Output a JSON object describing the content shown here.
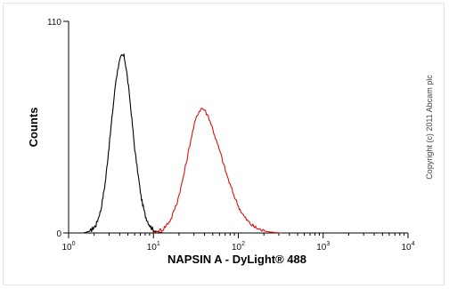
{
  "chart_data": {
    "type": "line",
    "title": "",
    "xlabel": "NAPSIN A - DyLight® 488",
    "ylabel": "Counts",
    "x_scale": "log",
    "xlim": [
      1,
      10000
    ],
    "ylim": [
      0,
      110
    ],
    "x_ticks": [
      1,
      10,
      100,
      1000,
      10000
    ],
    "x_tick_labels": [
      {
        "base": "10",
        "exp": "0"
      },
      {
        "base": "10",
        "exp": "1"
      },
      {
        "base": "10",
        "exp": "2"
      },
      {
        "base": "10",
        "exp": "3"
      },
      {
        "base": "10",
        "exp": "4"
      }
    ],
    "y_ticks": [
      0,
      110
    ],
    "y_tick_labels": [
      "0",
      "110"
    ],
    "grid": false,
    "annotations": [
      "Copyright (c) 2011 Abcam plc"
    ],
    "series": [
      {
        "color": "#000000",
        "x": [
          1.5,
          1.8,
          2.1,
          2.4,
          2.7,
          3.0,
          3.3,
          3.6,
          3.9,
          4.2,
          4.5,
          4.8,
          5.2,
          5.6,
          6.0,
          6.6,
          7.2,
          8.0,
          9.0,
          10.0,
          11.5,
          13.0
        ],
        "y": [
          0,
          1,
          4,
          12,
          26,
          45,
          63,
          79,
          88,
          92,
          92,
          85,
          72,
          58,
          44,
          30,
          18,
          9,
          4,
          1.5,
          0.5,
          0
        ]
      },
      {
        "color": "#dd1111",
        "x": [
          10,
          13,
          16,
          19,
          22,
          25,
          28,
          31,
          34,
          37,
          40,
          45,
          50,
          56,
          63,
          71,
          80,
          90,
          100,
          115,
          130,
          150,
          175,
          200,
          240,
          280,
          320
        ],
        "y": [
          0,
          2,
          7,
          16,
          27,
          39,
          50,
          58,
          63,
          65,
          64,
          60,
          54,
          47,
          40,
          32,
          25,
          19,
          14,
          9,
          6,
          3.5,
          2,
          1,
          0.5,
          0.2,
          0
        ]
      }
    ]
  }
}
